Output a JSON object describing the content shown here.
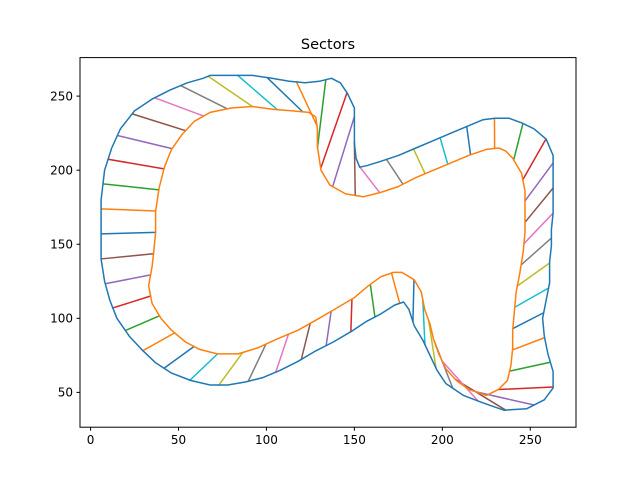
{
  "chart_data": {
    "type": "line",
    "title": "Sectors",
    "xlabel": "",
    "ylabel": "",
    "xlim": [
      -6,
      276
    ],
    "ylim": [
      26.5,
      276
    ],
    "xticks": [
      0,
      50,
      100,
      150,
      200,
      250
    ],
    "yticks": [
      50,
      100,
      150,
      200,
      250
    ],
    "grid": false,
    "series": [
      {
        "color": "#1f77b4",
        "role": "outer-boundary",
        "points": [
          [
            6,
            157
          ],
          [
            6,
            180
          ],
          [
            8,
            200
          ],
          [
            12,
            215
          ],
          [
            17,
            228
          ],
          [
            25,
            240
          ],
          [
            35,
            248
          ],
          [
            45,
            254
          ],
          [
            55,
            259
          ],
          [
            64,
            262
          ],
          [
            68,
            264
          ],
          [
            80,
            264
          ],
          [
            92,
            264
          ],
          [
            103,
            262
          ],
          [
            113,
            260
          ],
          [
            122,
            259
          ],
          [
            130,
            260
          ],
          [
            137,
            262
          ],
          [
            142,
            259
          ],
          [
            146,
            252
          ],
          [
            150,
            242
          ],
          [
            150,
            230
          ],
          [
            150,
            218
          ],
          [
            151,
            208
          ],
          [
            153,
            202
          ],
          [
            157,
            203
          ],
          [
            165,
            206
          ],
          [
            175,
            210
          ],
          [
            185,
            215
          ],
          [
            195,
            220
          ],
          [
            205,
            225
          ],
          [
            215,
            230
          ],
          [
            223,
            234
          ],
          [
            230,
            235
          ],
          [
            238,
            235
          ],
          [
            245,
            232
          ],
          [
            252,
            228
          ],
          [
            259,
            221
          ],
          [
            263,
            210
          ],
          [
            263,
            194
          ],
          [
            263,
            181
          ],
          [
            263,
            171
          ],
          [
            262,
            160
          ],
          [
            262,
            149
          ],
          [
            261,
            138
          ],
          [
            261,
            124
          ],
          [
            259,
            112
          ],
          [
            257,
            100
          ],
          [
            258,
            88
          ],
          [
            260,
            76
          ],
          [
            263,
            64
          ],
          [
            263,
            53
          ],
          [
            258,
            45
          ],
          [
            248,
            39
          ],
          [
            235,
            38
          ],
          [
            223,
            43
          ],
          [
            212,
            48
          ],
          [
            202,
            56
          ],
          [
            197,
            65
          ],
          [
            193,
            75
          ],
          [
            189,
            85
          ],
          [
            184,
            95
          ],
          [
            181,
            106
          ],
          [
            178,
            111
          ],
          [
            173,
            109
          ],
          [
            165,
            103
          ],
          [
            157,
            98
          ],
          [
            148,
            91
          ],
          [
            138,
            84
          ],
          [
            128,
            78
          ],
          [
            118,
            71
          ],
          [
            108,
            65
          ],
          [
            98,
            60
          ],
          [
            88,
            57
          ],
          [
            78,
            55
          ],
          [
            68,
            55
          ],
          [
            57,
            58
          ],
          [
            46,
            63
          ],
          [
            37,
            70
          ],
          [
            29,
            79
          ],
          [
            22,
            88
          ],
          [
            15,
            100
          ],
          [
            11,
            112
          ],
          [
            8,
            125
          ],
          [
            6,
            140
          ],
          [
            6,
            157
          ]
        ]
      },
      {
        "color": "#ff7f0e",
        "role": "inner-boundary",
        "points": [
          [
            37,
            158
          ],
          [
            37,
            172
          ],
          [
            39,
            188
          ],
          [
            42,
            202
          ],
          [
            46,
            214
          ],
          [
            52,
            224
          ],
          [
            59,
            233
          ],
          [
            68,
            239
          ],
          [
            80,
            242
          ],
          [
            92,
            243
          ],
          [
            104,
            241
          ],
          [
            115,
            240
          ],
          [
            124,
            239
          ],
          [
            128,
            236
          ],
          [
            129,
            228
          ],
          [
            129,
            216
          ],
          [
            131,
            200
          ],
          [
            136,
            190
          ],
          [
            145,
            184
          ],
          [
            155,
            182
          ],
          [
            165,
            185
          ],
          [
            175,
            189
          ],
          [
            185,
            195
          ],
          [
            195,
            200
          ],
          [
            205,
            205
          ],
          [
            215,
            210
          ],
          [
            225,
            214
          ],
          [
            232,
            215
          ],
          [
            236,
            213
          ],
          [
            240,
            208
          ],
          [
            245,
            198
          ],
          [
            247,
            186
          ],
          [
            247,
            172
          ],
          [
            247,
            158
          ],
          [
            246,
            145
          ],
          [
            244,
            130
          ],
          [
            242,
            118
          ],
          [
            241,
            105
          ],
          [
            240,
            92
          ],
          [
            240,
            80
          ],
          [
            239,
            68
          ],
          [
            237,
            58
          ],
          [
            232,
            52
          ],
          [
            225,
            48
          ],
          [
            215,
            52
          ],
          [
            208,
            58
          ],
          [
            202,
            66
          ],
          [
            198,
            76
          ],
          [
            195,
            86
          ],
          [
            193,
            96
          ],
          [
            190,
            106
          ],
          [
            188,
            118
          ],
          [
            184,
            126
          ],
          [
            177,
            131
          ],
          [
            172,
            131
          ],
          [
            165,
            128
          ],
          [
            158,
            122
          ],
          [
            150,
            114
          ],
          [
            140,
            107
          ],
          [
            130,
            100
          ],
          [
            118,
            92
          ],
          [
            106,
            86
          ],
          [
            95,
            80
          ],
          [
            84,
            76
          ],
          [
            72,
            76
          ],
          [
            62,
            79
          ],
          [
            54,
            84
          ],
          [
            46,
            92
          ],
          [
            40,
            100
          ],
          [
            35,
            110
          ],
          [
            33,
            122
          ],
          [
            35,
            135
          ],
          [
            36,
            146
          ],
          [
            37,
            158
          ]
        ]
      }
    ],
    "sector_colors": [
      "#1f77b4",
      "#ff7f0e",
      "#2ca02c",
      "#d62728",
      "#9467bd",
      "#8c564b",
      "#e377c2",
      "#7f7f7f",
      "#bcbd22",
      "#17becf"
    ]
  }
}
